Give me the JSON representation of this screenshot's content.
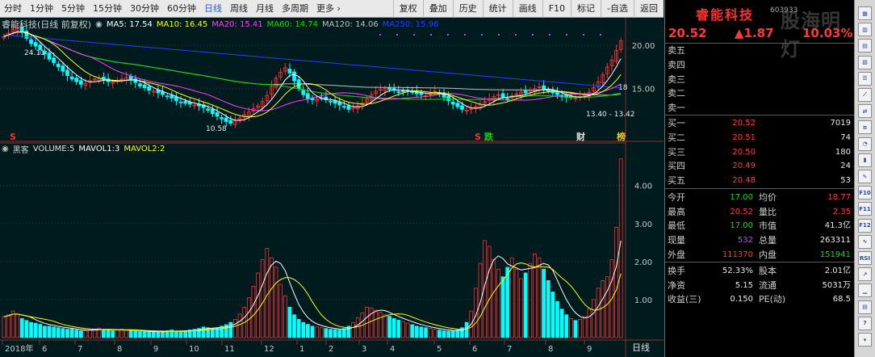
{
  "periods": [
    "分时",
    "1分钟",
    "5分钟",
    "15分钟",
    "30分钟",
    "60分钟",
    "日线",
    "周线",
    "月线",
    "多周期",
    "更多 ›"
  ],
  "active_period": "日线",
  "toolbar": [
    "复权",
    "叠加",
    "历史",
    "统计",
    "画线",
    "F10",
    "标记",
    "-自选",
    "返回"
  ],
  "chart_header": {
    "title": "睿能科技(日线 前复权)",
    "ma5": "MA5: 17.54",
    "ma10": "MA10: 16.45",
    "ma20": "MA20: 15.41",
    "ma60": "MA60: 14.74",
    "ma120": "MA120: 14.06",
    "ma250": "MA250: 15.96"
  },
  "volume_header": {
    "label": "黑客",
    "volume": "VOLUME:5",
    "mavol1": "MAVOL1:3",
    "mavol2": "MAVOL2:2"
  },
  "colors": {
    "ma5": "#ffffff",
    "ma10": "#ffff00",
    "ma20": "#ff40ff",
    "ma60": "#00e000",
    "ma120": "#c0c0c0",
    "ma250": "#2040ff",
    "up": "#ff3030",
    "down": "#00ffff"
  },
  "chart_data": {
    "type": "candlestick",
    "price_axis": {
      "ticks": [
        "20.00",
        "15.00"
      ],
      "ylim": [
        9,
        21.5
      ]
    },
    "volume_axis": {
      "ticks": [
        "4.00",
        "3.00",
        "2.00",
        "1.00"
      ],
      "ylim": [
        0,
        4.8
      ]
    },
    "x_ticks": [
      "2018年",
      "6",
      "7",
      "8",
      "9",
      "10",
      "11",
      "12",
      "1",
      "2",
      "3",
      "4",
      "5",
      "6",
      "7",
      "8",
      "9"
    ],
    "annotations": [
      "24.11",
      "10.58",
      "13.40 - 13.42",
      "18"
    ],
    "event_markers": [
      "S",
      "S",
      "跌",
      "财",
      "榜"
    ],
    "close": [
      21.0,
      21.4,
      21.8,
      22.0,
      21.5,
      20.8,
      20.2,
      19.9,
      19.5,
      19.0,
      18.4,
      18.0,
      17.5,
      17.0,
      16.5,
      16.1,
      15.8,
      15.5,
      15.6,
      15.9,
      16.1,
      16.2,
      16.0,
      15.8,
      15.7,
      15.9,
      16.1,
      16.3,
      16.0,
      15.7,
      15.3,
      15.1,
      14.8,
      14.7,
      14.5,
      14.3,
      14.1,
      13.9,
      13.6,
      13.4,
      13.3,
      13.2,
      13.1,
      13.0,
      12.8,
      12.5,
      12.1,
      11.8,
      11.5,
      11.2,
      11.0,
      11.3,
      11.6,
      12.0,
      12.3,
      12.7,
      13.0,
      13.5,
      14.2,
      15.3,
      16.2,
      16.9,
      17.4,
      16.8,
      15.9,
      15.0,
      14.3,
      13.8,
      13.7,
      13.8,
      13.9,
      13.7,
      13.5,
      13.3,
      13.1,
      12.9,
      12.6,
      12.8,
      13.0,
      13.3,
      13.8,
      14.3,
      14.7,
      14.9,
      15.0,
      14.9,
      14.8,
      14.6,
      14.7,
      14.8,
      14.6,
      14.4,
      14.3,
      14.2,
      14.5,
      14.7,
      14.4,
      14.0,
      13.6,
      13.2,
      12.9,
      12.6,
      12.5,
      12.7,
      12.9,
      13.2,
      13.5,
      13.8,
      14.1,
      14.3,
      14.0,
      13.8,
      14.2,
      14.4,
      14.6,
      14.5,
      14.8,
      15.0,
      15.2,
      15.0,
      14.7,
      14.5,
      14.3,
      14.1,
      14.0,
      14.0,
      13.9,
      14.1,
      14.3,
      14.6,
      15.1,
      15.8,
      16.6,
      17.5,
      18.3,
      19.4,
      20.52
    ],
    "volume": [
      0.55,
      0.6,
      0.7,
      0.62,
      0.5,
      0.45,
      0.4,
      0.38,
      0.35,
      0.3,
      0.3,
      0.28,
      0.26,
      0.24,
      0.22,
      0.22,
      0.2,
      0.18,
      0.18,
      0.2,
      0.22,
      0.25,
      0.22,
      0.2,
      0.18,
      0.2,
      0.22,
      0.2,
      0.18,
      0.17,
      0.16,
      0.16,
      0.15,
      0.16,
      0.15,
      0.16,
      0.18,
      0.2,
      0.17,
      0.16,
      0.18,
      0.2,
      0.22,
      0.24,
      0.28,
      0.26,
      0.24,
      0.26,
      0.3,
      0.34,
      0.4,
      0.48,
      0.62,
      0.8,
      1.05,
      1.35,
      1.7,
      2.05,
      2.35,
      2.1,
      1.85,
      1.4,
      1.1,
      0.8,
      0.6,
      0.48,
      0.4,
      0.35,
      0.3,
      0.28,
      0.26,
      0.24,
      0.22,
      0.21,
      0.2,
      0.24,
      0.3,
      0.4,
      0.52,
      0.65,
      0.8,
      0.78,
      0.72,
      0.66,
      0.6,
      0.56,
      0.5,
      0.46,
      0.42,
      0.38,
      0.34,
      0.3,
      0.28,
      0.26,
      0.24,
      0.22,
      0.2,
      0.18,
      0.17,
      0.18,
      0.2,
      0.26,
      0.4,
      0.7,
      1.3,
      1.95,
      2.55,
      2.4,
      2.05,
      1.8,
      1.6,
      1.85,
      2.1,
      1.8,
      1.55,
      1.7,
      1.95,
      2.2,
      2.1,
      1.8,
      1.5,
      1.2,
      0.95,
      0.75,
      0.6,
      0.5,
      0.45,
      0.48,
      0.55,
      0.75,
      1.0,
      1.3,
      1.5,
      1.6,
      2.05,
      2.9,
      4.7
    ]
  },
  "quote": {
    "name": "睿能科技",
    "code": "603933",
    "watermark": "股海明灯",
    "price": "20.52",
    "change": "▲1.87",
    "pct": "10.03%",
    "sell": [
      {
        "label": "卖五",
        "price": "",
        "vol": ""
      },
      {
        "label": "卖四",
        "price": "",
        "vol": ""
      },
      {
        "label": "卖三",
        "price": "",
        "vol": ""
      },
      {
        "label": "卖二",
        "price": "",
        "vol": ""
      },
      {
        "label": "卖一",
        "price": "",
        "vol": ""
      }
    ],
    "buy": [
      {
        "label": "买一",
        "price": "20.52",
        "vol": "7019"
      },
      {
        "label": "买二",
        "price": "20.51",
        "vol": "74"
      },
      {
        "label": "买三",
        "price": "20.50",
        "vol": "180"
      },
      {
        "label": "买四",
        "price": "20.49",
        "vol": "24"
      },
      {
        "label": "买五",
        "price": "20.48",
        "vol": "53"
      }
    ],
    "stats": [
      {
        "l1": "今开",
        "v1": "17.00",
        "c1": "#00e000",
        "l2": "均价",
        "v2": "18.77",
        "c2": "#ff3838"
      },
      {
        "l1": "最高",
        "v1": "20.52",
        "c1": "#ff3838",
        "l2": "量比",
        "v2": "2.35",
        "c2": "#ff3838"
      },
      {
        "l1": "最低",
        "v1": "17.00",
        "c1": "#00e000",
        "l2": "市值",
        "v2": "41.3亿",
        "c2": "#e8e8e8"
      },
      {
        "l1": "现量",
        "v1": "532",
        "c1": "#c040ff",
        "l2": "总量",
        "v2": "263311",
        "c2": "#e8e8e8"
      },
      {
        "l1": "外盘",
        "v1": "111370",
        "c1": "#ff3838",
        "l2": "内盘",
        "v2": "151941",
        "c2": "#00e000"
      }
    ],
    "fin": [
      {
        "l1": "换手",
        "v1": "52.33%",
        "l2": "股本",
        "v2": "2.01亿"
      },
      {
        "l1": "净资",
        "v1": "5.15",
        "l2": "流通",
        "v2": "5031万"
      },
      {
        "l1": "收益(三)",
        "v1": "0.150",
        "l2": "PE(动)",
        "v2": "68.5"
      }
    ]
  },
  "bottom_label": "日线",
  "sidebar_icons": [
    "chart-icon",
    "kline-icon",
    "table-icon",
    "grid-icon",
    "list-icon",
    "line-chart-icon",
    "compare-icon",
    "flow-icon",
    "pie-icon",
    "bar-icon",
    "indicator-icon",
    "f10-icon",
    "f11-icon",
    "f12-icon",
    "wave-icon",
    "rsi-icon",
    "trend-icon",
    "bars-icon",
    "doc-icon",
    "help-icon",
    "scroll-down-icon"
  ]
}
